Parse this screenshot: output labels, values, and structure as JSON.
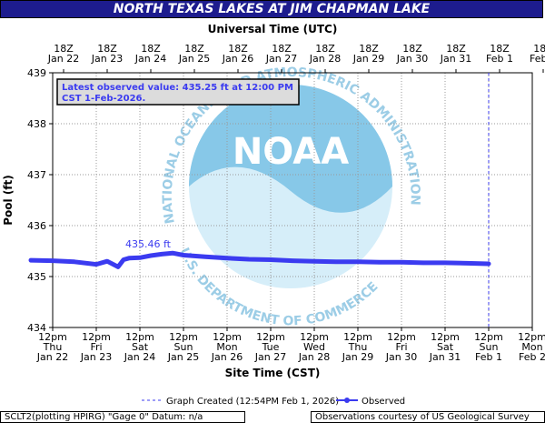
{
  "title": "NORTH TEXAS LAKES AT JIM CHAPMAN LAKE",
  "colors": {
    "title_bg": "#1d1c8e",
    "series": "#3b3bf0",
    "grid": "#9a9a9a",
    "noaa_logo": "#87c8e8"
  },
  "watermark": {
    "name": "noaa-logo-watermark",
    "text_top": "NATIONAL OCEANIC AND ATMOSPHERIC ADMINISTRATION",
    "text_bottom": "U.S. DEPARTMENT OF COMMERCE",
    "center_text": "NOAA"
  },
  "chart_data": {
    "type": "line",
    "title": "NORTH TEXAS LAKES AT JIM CHAPMAN LAKE",
    "xlabel": "Site Time (CST)",
    "x2label": "Universal Time (UTC)",
    "ylabel": "Pool (ft)",
    "ylim": [
      434,
      439
    ],
    "yticks": [
      "434",
      "435",
      "436",
      "437",
      "438",
      "439"
    ],
    "xlim": [
      "2026-01-22 12:00",
      "2026-02-02 12:00"
    ],
    "x_ticks_bottom": [
      {
        "time": "12pm",
        "day": "Thu",
        "date": "Jan 22"
      },
      {
        "time": "12pm",
        "day": "Fri",
        "date": "Jan 23"
      },
      {
        "time": "12pm",
        "day": "Sat",
        "date": "Jan 24"
      },
      {
        "time": "12pm",
        "day": "Sun",
        "date": "Jan 25"
      },
      {
        "time": "12pm",
        "day": "Mon",
        "date": "Jan 26"
      },
      {
        "time": "12pm",
        "day": "Tue",
        "date": "Jan 27"
      },
      {
        "time": "12pm",
        "day": "Wed",
        "date": "Jan 28"
      },
      {
        "time": "12pm",
        "day": "Thu",
        "date": "Jan 29"
      },
      {
        "time": "12pm",
        "day": "Fri",
        "date": "Jan 30"
      },
      {
        "time": "12pm",
        "day": "Sat",
        "date": "Jan 31"
      },
      {
        "time": "12pm",
        "day": "Sun",
        "date": "Feb 1"
      },
      {
        "time": "12pm",
        "day": "Mon",
        "date": "Feb 2"
      }
    ],
    "x_ticks_top": [
      {
        "time": "18Z",
        "date": "Jan 22"
      },
      {
        "time": "18Z",
        "date": "Jan 23"
      },
      {
        "time": "18Z",
        "date": "Jan 24"
      },
      {
        "time": "18Z",
        "date": "Jan 25"
      },
      {
        "time": "18Z",
        "date": "Jan 26"
      },
      {
        "time": "18Z",
        "date": "Jan 27"
      },
      {
        "time": "18Z",
        "date": "Jan 28"
      },
      {
        "time": "18Z",
        "date": "Jan 29"
      },
      {
        "time": "18Z",
        "date": "Jan 30"
      },
      {
        "time": "18Z",
        "date": "Jan 31"
      },
      {
        "time": "18Z",
        "date": "Feb 1"
      },
      {
        "time": "18Z",
        "date": "Feb 2"
      }
    ],
    "grid": true,
    "series": [
      {
        "name": "Observed",
        "x": [
          "2026-01-22 00:00",
          "2026-01-22 12:00",
          "2026-01-23 00:00",
          "2026-01-23 12:00",
          "2026-01-23 18:00",
          "2026-01-24 00:00",
          "2026-01-24 03:00",
          "2026-01-24 06:00",
          "2026-01-24 12:00",
          "2026-01-24 18:00",
          "2026-01-25 00:00",
          "2026-01-25 06:00",
          "2026-01-25 12:00",
          "2026-01-26 00:00",
          "2026-01-26 12:00",
          "2026-01-27 00:00",
          "2026-01-27 12:00",
          "2026-01-28 00:00",
          "2026-01-28 12:00",
          "2026-01-29 00:00",
          "2026-01-29 12:00",
          "2026-01-30 00:00",
          "2026-01-30 12:00",
          "2026-01-31 00:00",
          "2026-01-31 12:00",
          "2026-02-01 00:00",
          "2026-02-01 12:00"
        ],
        "y": [
          435.32,
          435.31,
          435.29,
          435.24,
          435.3,
          435.19,
          435.33,
          435.36,
          435.37,
          435.41,
          435.44,
          435.46,
          435.42,
          435.39,
          435.36,
          435.34,
          435.33,
          435.31,
          435.3,
          435.29,
          435.29,
          435.28,
          435.28,
          435.27,
          435.27,
          435.26,
          435.25
        ]
      }
    ],
    "annotations": {
      "max_label": "435.46 ft",
      "max_x": "2026-01-25 06:00",
      "max_y": 435.46,
      "latest_line1": "Latest observed value: 435.25 ft at 12:00 PM",
      "latest_line2": "CST 1-Feb-2026.",
      "graph_created_x": "2026-02-01 12:00"
    },
    "legend": {
      "created_label": "Graph Created (12:54PM Feb 1, 2026)",
      "observed_label": "Observed",
      "placement": "bottom"
    }
  },
  "footer": {
    "left": "SCLT2(plotting HPIRG) \"Gage 0\" Datum: n/a",
    "right": "Observations courtesy of US Geological Survey"
  }
}
